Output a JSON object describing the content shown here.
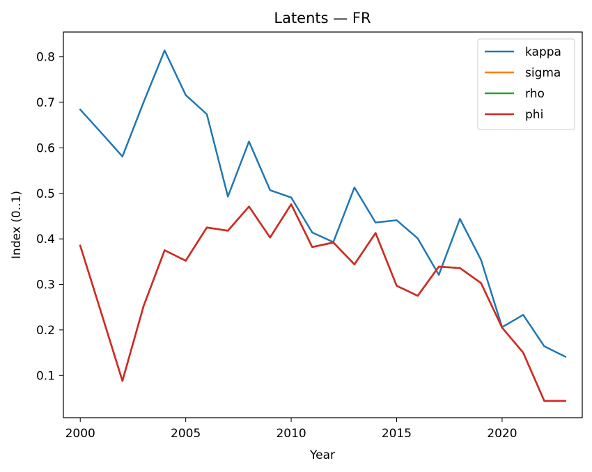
{
  "chart_data": {
    "type": "line",
    "title": "Latents — FR",
    "xlabel": "Year",
    "ylabel": "Index (0..1)",
    "xlim": [
      1999.2,
      2023.8
    ],
    "ylim": [
      0.0071,
      0.8545
    ],
    "xticks": [
      2000,
      2005,
      2010,
      2015,
      2020
    ],
    "yticks": [
      0.1,
      0.2,
      0.3,
      0.4,
      0.5,
      0.6,
      0.7,
      0.8
    ],
    "grid": false,
    "legend_position": "top-right",
    "x": [
      2000,
      2001,
      2002,
      2003,
      2004,
      2005,
      2006,
      2007,
      2008,
      2009,
      2010,
      2011,
      2012,
      2013,
      2014,
      2015,
      2016,
      2017,
      2018,
      2019,
      2020,
      2021,
      2022,
      2023
    ],
    "series": [
      {
        "name": "kappa",
        "color": "#1f77b4",
        "values": [
          0.684,
          0.633,
          0.581,
          0.7,
          0.814,
          0.716,
          0.674,
          0.493,
          0.614,
          0.507,
          0.491,
          0.414,
          0.393,
          0.513,
          0.436,
          0.441,
          0.401,
          0.321,
          0.444,
          0.354,
          0.206,
          0.233,
          0.164,
          0.141
        ]
      },
      {
        "name": "sigma",
        "color": "#ff7f0e",
        "values": [
          0.385,
          0.237,
          0.088,
          0.252,
          0.375,
          0.352,
          0.425,
          0.418,
          0.471,
          0.403,
          0.476,
          0.382,
          0.392,
          0.344,
          0.413,
          0.297,
          0.275,
          0.339,
          0.336,
          0.303,
          0.205,
          0.15,
          0.044,
          0.044
        ]
      },
      {
        "name": "rho",
        "color": "#2ca02c",
        "values": [
          0.385,
          0.237,
          0.088,
          0.252,
          0.375,
          0.352,
          0.425,
          0.418,
          0.471,
          0.403,
          0.476,
          0.382,
          0.392,
          0.344,
          0.413,
          0.297,
          0.275,
          0.339,
          0.336,
          0.303,
          0.205,
          0.15,
          0.044,
          0.044
        ]
      },
      {
        "name": "phi",
        "color": "#d62728",
        "values": [
          0.385,
          0.237,
          0.088,
          0.252,
          0.375,
          0.352,
          0.425,
          0.418,
          0.471,
          0.403,
          0.476,
          0.382,
          0.392,
          0.344,
          0.413,
          0.297,
          0.275,
          0.339,
          0.336,
          0.303,
          0.205,
          0.15,
          0.044,
          0.044
        ]
      }
    ]
  }
}
